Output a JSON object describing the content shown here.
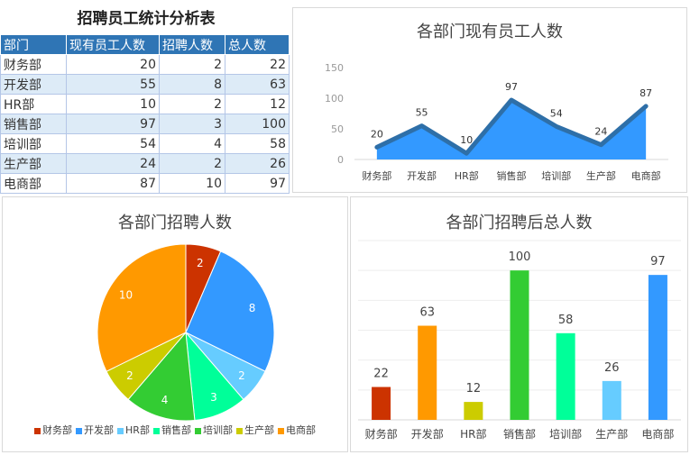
{
  "sheet": {
    "title": "招聘员工统计分析表",
    "headers": [
      "部门",
      "现有员工人数",
      "招聘人数",
      "总人数"
    ],
    "rows": [
      [
        "财务部",
        20,
        2,
        22
      ],
      [
        "开发部",
        55,
        8,
        63
      ],
      [
        "HR部",
        10,
        2,
        12
      ],
      [
        "销售部",
        97,
        3,
        100
      ],
      [
        "培训部",
        54,
        4,
        58
      ],
      [
        "生产部",
        24,
        2,
        26
      ],
      [
        "电商部",
        87,
        10,
        97
      ]
    ]
  },
  "chart_data": [
    {
      "type": "area",
      "title": "各部门现有员工人数",
      "categories": [
        "财务部",
        "开发部",
        "HR部",
        "销售部",
        "培训部",
        "生产部",
        "电商部"
      ],
      "values": [
        20,
        55,
        10,
        97,
        54,
        24,
        87
      ],
      "ylim": [
        0,
        150
      ],
      "yticks": [
        0,
        50,
        100,
        150
      ],
      "grid": false,
      "fill_color": "#3399ff",
      "line_color": "#2e6fa8"
    },
    {
      "type": "pie",
      "title": "各部门招聘人数",
      "categories": [
        "财务部",
        "开发部",
        "HR部",
        "销售部",
        "培训部",
        "生产部",
        "电商部"
      ],
      "values": [
        2,
        8,
        2,
        3,
        4,
        2,
        10
      ],
      "colors": [
        "#cc3300",
        "#3399ff",
        "#66ccff",
        "#00ff99",
        "#33cc33",
        "#cccc00",
        "#ff9900"
      ],
      "legend": "bottom"
    },
    {
      "type": "bar",
      "title": "各部门招聘后总人数",
      "categories": [
        "财务部",
        "开发部",
        "HR部",
        "销售部",
        "培训部",
        "生产部",
        "电商部"
      ],
      "values": [
        22,
        63,
        12,
        100,
        58,
        26,
        97
      ],
      "colors": [
        "#cc3300",
        "#ff9900",
        "#cccc00",
        "#33cc33",
        "#00ff99",
        "#66ccff",
        "#3399ff"
      ],
      "ylim": [
        0,
        120
      ],
      "grid": true
    }
  ]
}
